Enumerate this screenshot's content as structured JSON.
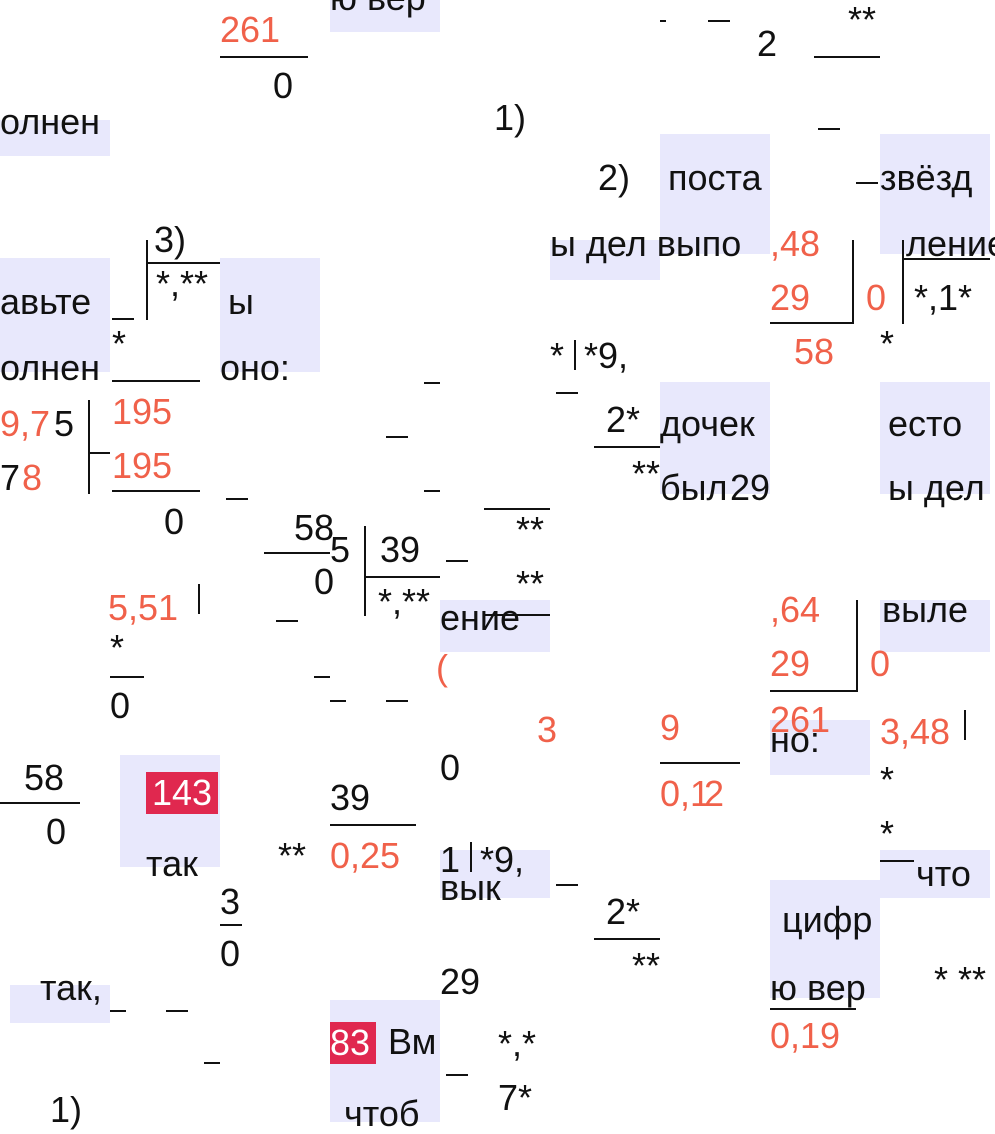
{
  "fragments": {
    "f_261_top": "261",
    "f_0_top": "0",
    "f_yu_ver": "ю вер",
    "f_olnen": "олнен",
    "f_one_paren": "1)",
    "f_two_paren": "2)",
    "f_posta": "поста",
    "f_zvyozd": "звёзд",
    "f_three_paren": "3)",
    "f_star_comma_2star": "*,**",
    "f_avte": "авьте",
    "f_by": "ы",
    "f_olnen2": "олнен",
    "f_ono": "оно:",
    "f_star_a": "*",
    "f_ydel_vyp": "ы дел выпо",
    "f_lenie": "ление",
    "f_29a": "29",
    "f_0a": "0",
    "f_star_comma_1star": "*,1*",
    "f_58a": "58",
    "f_star_9_comma": "*9,",
    "f_975": "9,7",
    "f_5": "5",
    "f_195a": "195",
    "f_195b": "195",
    "f_78": "7",
    "f_8o": "8",
    "f_2star": "2*",
    "f_dochek": "дочек",
    "f_esto": "есто",
    "f_star2": "**",
    "f_byl": "был",
    "f_29b": "29",
    "f_y_del": "ы дел",
    "f_0b": "0",
    "f_58b": "58",
    "f_5b": "5",
    "f_39a": "39",
    "f_0c": "0",
    "f_star_comma_2star_b": "*,**",
    "f_star2b": "**",
    "f_star2c": "**",
    "f_enie": "ение",
    "f_551": "5,51",
    "f_star_b": "*",
    "f_0d": "0",
    "f_29c": "29",
    "f_vyle": "выле",
    "f_261b": "261",
    "f_no": "но:",
    "f_348": "3,48",
    "f_58c": "58",
    "f_0e": "0",
    "f_143": "143",
    "f_tak": "так",
    "f_39b": "39",
    "f_2star_025": "**",
    "f_025": "0,25",
    "f_0f": "0",
    "f_012a": "0,1",
    "f_012b": "2",
    "f_1_star9": "1",
    "f_star9": "*9,",
    "f_vyk": "вык",
    "f_star_c": "*",
    "f_star_d": "*",
    "f_chto": "что",
    "f_3small": "3",
    "f_0g": "0",
    "f_2star_b": "2*",
    "f_star2d": "**",
    "f_cifr": "цифр",
    "f_29d": "29",
    "f_yu_ver2": "ю вер",
    "f_3star": "* **",
    "f_tak2": "так,",
    "f_83": "83",
    "f_vm": "Вм",
    "f_star_comma_star": "*,*",
    "f_019": "0,19",
    "f_one_paren2": "1)",
    "f_chtob": "чтоб",
    "f_7star": "7*"
  },
  "colors": {
    "accent_orange": "#f0614a",
    "highlight_red": "#e0284f",
    "lavender": "#e8e8fc",
    "ink": "#111111"
  }
}
